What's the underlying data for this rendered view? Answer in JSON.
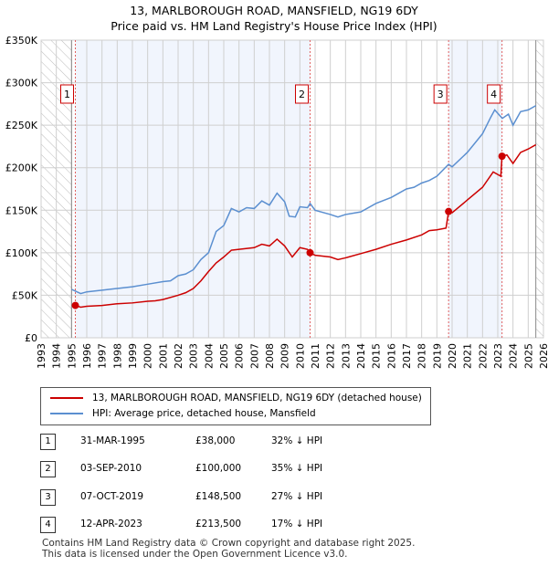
{
  "chart_data": {
    "type": "line",
    "title": "13, MARLBOROUGH ROAD, MANSFIELD, NG19 6DY",
    "subtitle": "Price paid vs. HM Land Registry's House Price Index (HPI)",
    "xlim": [
      1993,
      2026
    ],
    "ylim": [
      0,
      350000
    ],
    "x_ticks": [
      "1993",
      "1994",
      "1995",
      "1996",
      "1997",
      "1998",
      "1999",
      "2000",
      "2001",
      "2002",
      "2003",
      "2004",
      "2005",
      "2006",
      "2007",
      "2008",
      "2009",
      "2010",
      "2011",
      "2012",
      "2013",
      "2014",
      "2015",
      "2016",
      "2017",
      "2018",
      "2019",
      "2020",
      "2021",
      "2022",
      "2023",
      "2024",
      "2025",
      "2026"
    ],
    "y_ticks": [
      {
        "v": 0,
        "label": "£0"
      },
      {
        "v": 50000,
        "label": "£50K"
      },
      {
        "v": 100000,
        "label": "£100K"
      },
      {
        "v": 150000,
        "label": "£150K"
      },
      {
        "v": 200000,
        "label": "£200K"
      },
      {
        "v": 250000,
        "label": "£250K"
      },
      {
        "v": 300000,
        "label": "£300K"
      },
      {
        "v": 350000,
        "label": "£350K"
      }
    ],
    "grid": true,
    "series": [
      {
        "name": "13, MARLBOROUGH ROAD, MANSFIELD, NG19 6DY (detached house)",
        "color": "#cc0000",
        "x": [
          1995.25,
          1995.6,
          1996,
          1997,
          1998,
          1999,
          2000,
          2000.5,
          2001,
          2002,
          2002.5,
          2003,
          2003.5,
          2004,
          2004.5,
          2005,
          2005.5,
          2006,
          2007,
          2007.5,
          2008,
          2008.5,
          2009,
          2009.5,
          2010,
          2010.5,
          2010.67,
          2011,
          2012,
          2012.5,
          2013,
          2014,
          2015,
          2016,
          2017,
          2018,
          2018.5,
          2019,
          2019.6,
          2019.77,
          2020,
          2021,
          2022,
          2022.7,
          2023.2,
          2023.28,
          2023.6,
          2024,
          2024.5,
          2025,
          2025.5
        ],
        "y": [
          38000,
          36000,
          37000,
          38000,
          40000,
          41000,
          43000,
          43500,
          45000,
          50000,
          53000,
          58000,
          67000,
          78000,
          88000,
          95000,
          103000,
          104000,
          106000,
          110000,
          108000,
          116000,
          108000,
          95000,
          106000,
          104000,
          100000,
          97000,
          95000,
          92000,
          94000,
          99000,
          104000,
          110000,
          115000,
          121000,
          126000,
          127000,
          129000,
          148500,
          147000,
          162000,
          177000,
          195000,
          190000,
          213500,
          215000,
          205000,
          218000,
          222000,
          227000
        ]
      },
      {
        "name": "HPI: Average price, detached house, Mansfield",
        "color": "#5b8fd0",
        "x": [
          1995,
          1995.6,
          1996,
          1997,
          1998,
          1999,
          2000,
          2001,
          2001.5,
          2002,
          2002.5,
          2003,
          2003.5,
          2004,
          2004.5,
          2005,
          2005.5,
          2006,
          2006.5,
          2007,
          2007.5,
          2008,
          2008.5,
          2009,
          2009.3,
          2009.7,
          2010,
          2010.5,
          2010.67,
          2011,
          2012,
          2012.5,
          2013,
          2014,
          2015,
          2016,
          2017,
          2017.5,
          2018,
          2018.5,
          2019,
          2019.77,
          2020,
          2021,
          2022,
          2022.5,
          2022.8,
          2023.3,
          2023.7,
          2024,
          2024.5,
          2025,
          2025.5
        ],
        "y": [
          57000,
          52000,
          54000,
          56000,
          58000,
          60000,
          63000,
          66000,
          67000,
          73000,
          75000,
          80000,
          92000,
          100000,
          125000,
          132000,
          152000,
          148000,
          153000,
          152000,
          161000,
          156000,
          170000,
          160000,
          143000,
          142000,
          154000,
          153000,
          158000,
          150000,
          145000,
          142000,
          145000,
          148000,
          158000,
          165000,
          175000,
          177000,
          182000,
          185000,
          190000,
          204000,
          201000,
          218000,
          240000,
          258000,
          268000,
          258000,
          263000,
          250000,
          266000,
          268000,
          273000
        ]
      }
    ],
    "sales": [
      {
        "n": "1",
        "x": 1995.25,
        "date": "31-MAR-1995",
        "price": "£38,000",
        "hpi": "32% ↓ HPI",
        "y": 38000
      },
      {
        "n": "2",
        "x": 2010.67,
        "date": "03-SEP-2010",
        "price": "£100,000",
        "hpi": "35% ↓ HPI",
        "y": 100000
      },
      {
        "n": "3",
        "x": 2019.77,
        "date": "07-OCT-2019",
        "price": "£148,500",
        "hpi": "27% ↓ HPI",
        "y": 148500
      },
      {
        "n": "4",
        "x": 2023.28,
        "date": "12-APR-2023",
        "price": "£213,500",
        "hpi": "17% ↓ HPI",
        "y": 213500
      }
    ],
    "hatch_before": 1995.0,
    "hatch_after": 2025.5,
    "legend_placement": "below"
  },
  "footer": [
    "Contains HM Land Registry data © Crown copyright and database right 2025.",
    "This data is licensed under the Open Government Licence v3.0."
  ]
}
